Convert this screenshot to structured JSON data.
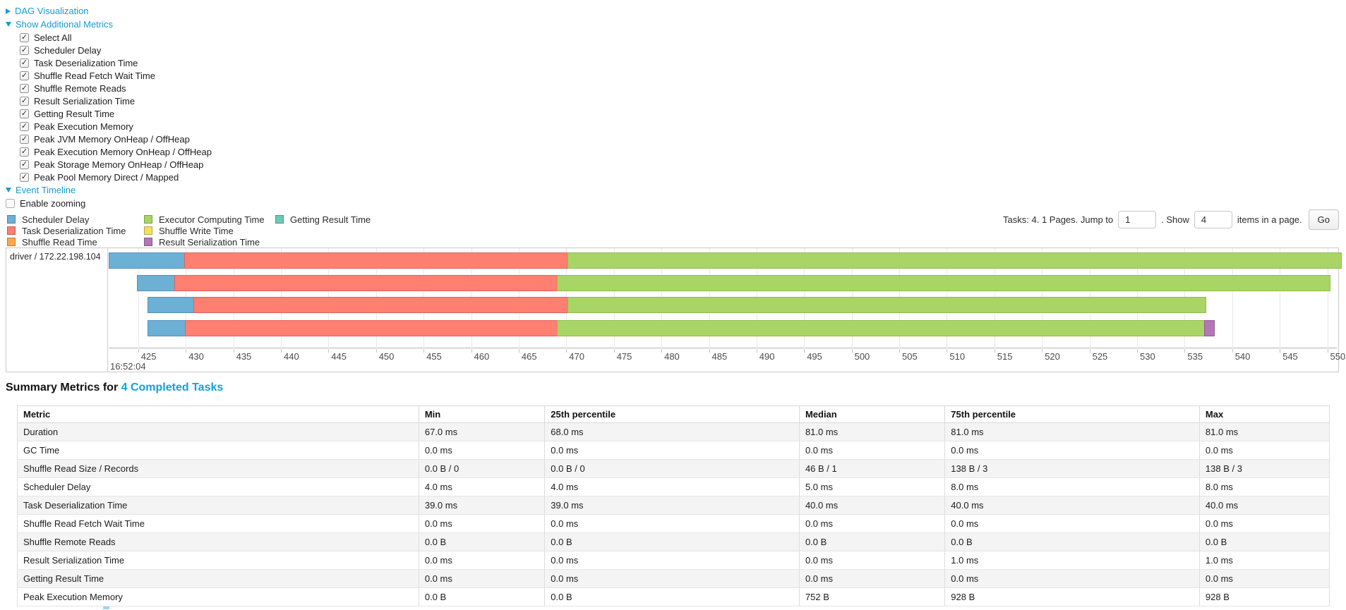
{
  "colors": {
    "link": "#169bd5",
    "title_link": "#0fa2dc",
    "scheduler_delay": "#6CB0D6",
    "scheduler_delay_border": "#5592B8",
    "task_deserialization": "#FF7F70",
    "task_deserialization_border": "#E0645C",
    "shuffle_read": "#FBA84C",
    "shuffle_read_border": "#E08E38",
    "executor_computing": "#A9D566",
    "executor_computing_border": "#8FBC4F",
    "shuffle_write": "#F2E25D",
    "shuffle_write_border": "#D9C84A",
    "result_serialization": "#B277B4",
    "result_serialization_border": "#965B99",
    "getting_result": "#6EC9B5",
    "getting_result_border": "#55AD99"
  },
  "sections": {
    "dag_label": "DAG Visualization",
    "metrics_label": "Show Additional Metrics",
    "timeline_label": "Event Timeline",
    "enable_zooming_label": "Enable zooming"
  },
  "metrics_section": {
    "items": [
      "Select All",
      "Scheduler Delay",
      "Task Deserialization Time",
      "Shuffle Read Fetch Wait Time",
      "Shuffle Remote Reads",
      "Result Serialization Time",
      "Getting Result Time",
      "Peak Execution Memory",
      "Peak JVM Memory OnHeap / OffHeap",
      "Peak Execution Memory OnHeap / OffHeap",
      "Peak Storage Memory OnHeap / OffHeap",
      "Peak Pool Memory Direct / Mapped"
    ]
  },
  "pagination": {
    "prefix": "Tasks: 4. 1 Pages. Jump to",
    "jump_value": "1",
    "show_text": ". Show",
    "items_value": "4",
    "suffix": "items in a page.",
    "go_label": "Go"
  },
  "chart_data": {
    "type": "timeline-gantt",
    "title": "Event Timeline",
    "row_label": "driver / 172.22.198.104",
    "axis": {
      "unit": "ms within second 16:52:04",
      "tick_start": 425,
      "tick_end": 550,
      "tick_step": 5,
      "window_start": 421.9,
      "window_end": 551.0,
      "major_label": "16:52:04",
      "grid": true
    },
    "legend_columns": [
      [
        {
          "key": "scheduler_delay",
          "label": "Scheduler Delay"
        },
        {
          "key": "task_deserialization",
          "label": "Task Deserialization Time"
        },
        {
          "key": "shuffle_read",
          "label": "Shuffle Read Time"
        }
      ],
      [
        {
          "key": "executor_computing",
          "label": "Executor Computing Time"
        },
        {
          "key": "shuffle_write",
          "label": "Shuffle Write Time"
        },
        {
          "key": "result_serialization",
          "label": "Result Serialization Time"
        }
      ],
      [
        {
          "key": "getting_result",
          "label": "Getting Result Time"
        }
      ]
    ],
    "tasks": [
      {
        "start": 421.9,
        "segments": [
          {
            "metric": "scheduler_delay",
            "end": 429.9
          },
          {
            "metric": "task_deserialization",
            "end": 470.2
          },
          {
            "metric": "executor_computing",
            "end": 551.5
          }
        ]
      },
      {
        "start": 424.9,
        "segments": [
          {
            "metric": "scheduler_delay",
            "end": 428.9
          },
          {
            "metric": "task_deserialization",
            "end": 469.1
          },
          {
            "metric": "executor_computing",
            "end": 550.3
          }
        ]
      },
      {
        "start": 426.0,
        "segments": [
          {
            "metric": "scheduler_delay",
            "end": 430.9
          },
          {
            "metric": "task_deserialization",
            "end": 470.2
          },
          {
            "metric": "executor_computing",
            "end": 537.3
          }
        ]
      },
      {
        "start": 426.0,
        "segments": [
          {
            "metric": "scheduler_delay",
            "end": 430.0
          },
          {
            "metric": "task_deserialization",
            "end": 469.1
          },
          {
            "metric": "executor_computing",
            "end": 537.1
          },
          {
            "metric": "result_serialization",
            "end": 538.2
          }
        ]
      }
    ]
  },
  "summary": {
    "title_prefix": "Summary Metrics for",
    "title_link": "4 Completed Tasks",
    "columns": [
      "Metric",
      "Min",
      "25th percentile",
      "Median",
      "75th percentile",
      "Max"
    ],
    "rows": [
      [
        "Duration",
        "67.0 ms",
        "68.0 ms",
        "81.0 ms",
        "81.0 ms",
        "81.0 ms"
      ],
      [
        "GC Time",
        "0.0 ms",
        "0.0 ms",
        "0.0 ms",
        "0.0 ms",
        "0.0 ms"
      ],
      [
        "Shuffle Read Size / Records",
        "0.0 B / 0",
        "0.0 B / 0",
        "46 B / 1",
        "138 B / 3",
        "138 B / 3"
      ],
      [
        "Scheduler Delay",
        "4.0 ms",
        "4.0 ms",
        "5.0 ms",
        "8.0 ms",
        "8.0 ms"
      ],
      [
        "Task Deserialization Time",
        "39.0 ms",
        "39.0 ms",
        "40.0 ms",
        "40.0 ms",
        "40.0 ms"
      ],
      [
        "Shuffle Read Fetch Wait Time",
        "0.0 ms",
        "0.0 ms",
        "0.0 ms",
        "0.0 ms",
        "0.0 ms"
      ],
      [
        "Shuffle Remote Reads",
        "0.0 B",
        "0.0 B",
        "0.0 B",
        "0.0 B",
        "0.0 B"
      ],
      [
        "Result Serialization Time",
        "0.0 ms",
        "0.0 ms",
        "0.0 ms",
        "1.0 ms",
        "1.0 ms"
      ],
      [
        "Getting Result Time",
        "0.0 ms",
        "0.0 ms",
        "0.0 ms",
        "0.0 ms",
        "0.0 ms"
      ],
      [
        "Peak Execution Memory",
        "0.0 B",
        "0.0 B",
        "752 B",
        "928 B",
        "928 B"
      ]
    ]
  }
}
